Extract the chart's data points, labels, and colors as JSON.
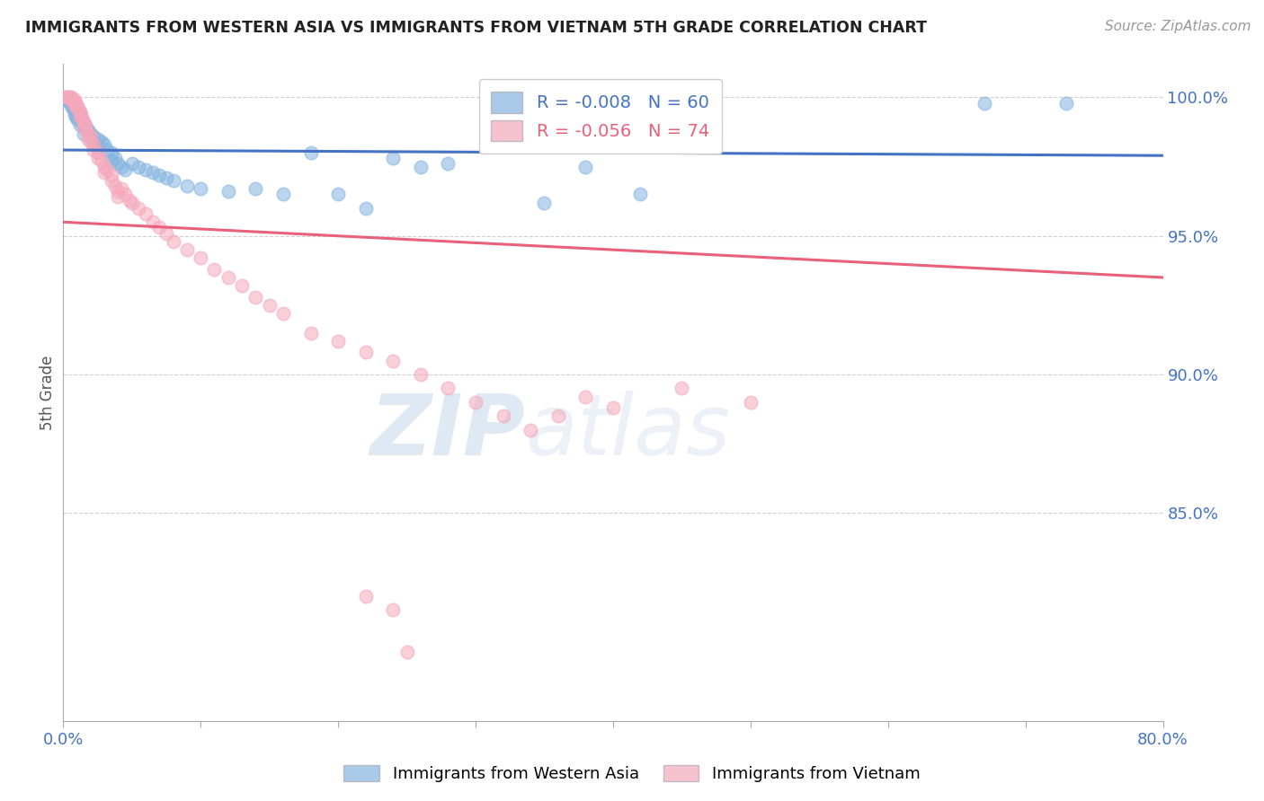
{
  "title": "IMMIGRANTS FROM WESTERN ASIA VS IMMIGRANTS FROM VIETNAM 5TH GRADE CORRELATION CHART",
  "source": "Source: ZipAtlas.com",
  "ylabel": "5th Grade",
  "ytick_labels": [
    "100.0%",
    "95.0%",
    "90.0%",
    "85.0%"
  ],
  "ytick_values": [
    1.0,
    0.95,
    0.9,
    0.85
  ],
  "xlim": [
    0.0,
    0.8
  ],
  "ylim": [
    0.775,
    1.012
  ],
  "legend_blue_r": "R = -0.008",
  "legend_blue_n": "N = 60",
  "legend_pink_r": "R = -0.056",
  "legend_pink_n": "N = 74",
  "blue_color": "#85b4e0",
  "pink_color": "#f5a8bc",
  "blue_line_color": "#4472c4",
  "pink_line_color": "#e8607a",
  "blue_line_y0": 0.981,
  "blue_line_y1": 0.979,
  "pink_line_y0": 0.955,
  "pink_line_y1": 0.935,
  "blue_scatter": [
    [
      0.002,
      0.999
    ],
    [
      0.003,
      0.999
    ],
    [
      0.004,
      0.999
    ],
    [
      0.005,
      0.999
    ],
    [
      0.006,
      0.999
    ],
    [
      0.006,
      0.997
    ],
    [
      0.007,
      0.998
    ],
    [
      0.007,
      0.996
    ],
    [
      0.008,
      0.997
    ],
    [
      0.008,
      0.994
    ],
    [
      0.009,
      0.996
    ],
    [
      0.009,
      0.993
    ],
    [
      0.01,
      0.995
    ],
    [
      0.01,
      0.992
    ],
    [
      0.011,
      0.994
    ],
    [
      0.012,
      0.993
    ],
    [
      0.012,
      0.99
    ],
    [
      0.013,
      0.992
    ],
    [
      0.014,
      0.991
    ],
    [
      0.015,
      0.99
    ],
    [
      0.015,
      0.987
    ],
    [
      0.017,
      0.989
    ],
    [
      0.018,
      0.988
    ],
    [
      0.02,
      0.987
    ],
    [
      0.022,
      0.986
    ],
    [
      0.022,
      0.983
    ],
    [
      0.025,
      0.985
    ],
    [
      0.025,
      0.982
    ],
    [
      0.028,
      0.984
    ],
    [
      0.03,
      0.983
    ],
    [
      0.032,
      0.981
    ],
    [
      0.035,
      0.98
    ],
    [
      0.035,
      0.977
    ],
    [
      0.038,
      0.978
    ],
    [
      0.04,
      0.976
    ],
    [
      0.042,
      0.975
    ],
    [
      0.045,
      0.974
    ],
    [
      0.05,
      0.976
    ],
    [
      0.055,
      0.975
    ],
    [
      0.06,
      0.974
    ],
    [
      0.065,
      0.973
    ],
    [
      0.07,
      0.972
    ],
    [
      0.075,
      0.971
    ],
    [
      0.08,
      0.97
    ],
    [
      0.09,
      0.968
    ],
    [
      0.1,
      0.967
    ],
    [
      0.12,
      0.966
    ],
    [
      0.14,
      0.967
    ],
    [
      0.16,
      0.965
    ],
    [
      0.18,
      0.98
    ],
    [
      0.2,
      0.965
    ],
    [
      0.22,
      0.96
    ],
    [
      0.24,
      0.978
    ],
    [
      0.26,
      0.975
    ],
    [
      0.28,
      0.976
    ],
    [
      0.35,
      0.962
    ],
    [
      0.38,
      0.975
    ],
    [
      0.42,
      0.965
    ],
    [
      0.67,
      0.998
    ],
    [
      0.73,
      0.998
    ]
  ],
  "pink_scatter": [
    [
      0.002,
      1.0
    ],
    [
      0.003,
      1.0
    ],
    [
      0.004,
      1.0
    ],
    [
      0.005,
      1.0
    ],
    [
      0.006,
      1.0
    ],
    [
      0.006,
      0.999
    ],
    [
      0.007,
      0.999
    ],
    [
      0.008,
      0.999
    ],
    [
      0.008,
      0.998
    ],
    [
      0.009,
      0.998
    ],
    [
      0.009,
      0.997
    ],
    [
      0.01,
      0.997
    ],
    [
      0.01,
      0.996
    ],
    [
      0.011,
      0.996
    ],
    [
      0.012,
      0.995
    ],
    [
      0.012,
      0.993
    ],
    [
      0.013,
      0.994
    ],
    [
      0.014,
      0.992
    ],
    [
      0.015,
      0.991
    ],
    [
      0.015,
      0.989
    ],
    [
      0.016,
      0.99
    ],
    [
      0.017,
      0.988
    ],
    [
      0.018,
      0.987
    ],
    [
      0.018,
      0.985
    ],
    [
      0.02,
      0.986
    ],
    [
      0.02,
      0.984
    ],
    [
      0.022,
      0.983
    ],
    [
      0.022,
      0.981
    ],
    [
      0.025,
      0.98
    ],
    [
      0.025,
      0.978
    ],
    [
      0.028,
      0.977
    ],
    [
      0.03,
      0.975
    ],
    [
      0.03,
      0.973
    ],
    [
      0.032,
      0.974
    ],
    [
      0.035,
      0.972
    ],
    [
      0.035,
      0.97
    ],
    [
      0.038,
      0.968
    ],
    [
      0.04,
      0.966
    ],
    [
      0.04,
      0.964
    ],
    [
      0.042,
      0.967
    ],
    [
      0.045,
      0.965
    ],
    [
      0.048,
      0.963
    ],
    [
      0.05,
      0.962
    ],
    [
      0.055,
      0.96
    ],
    [
      0.06,
      0.958
    ],
    [
      0.065,
      0.955
    ],
    [
      0.07,
      0.953
    ],
    [
      0.075,
      0.951
    ],
    [
      0.08,
      0.948
    ],
    [
      0.09,
      0.945
    ],
    [
      0.1,
      0.942
    ],
    [
      0.11,
      0.938
    ],
    [
      0.12,
      0.935
    ],
    [
      0.13,
      0.932
    ],
    [
      0.14,
      0.928
    ],
    [
      0.15,
      0.925
    ],
    [
      0.16,
      0.922
    ],
    [
      0.18,
      0.915
    ],
    [
      0.2,
      0.912
    ],
    [
      0.22,
      0.908
    ],
    [
      0.24,
      0.905
    ],
    [
      0.26,
      0.9
    ],
    [
      0.28,
      0.895
    ],
    [
      0.3,
      0.89
    ],
    [
      0.32,
      0.885
    ],
    [
      0.34,
      0.88
    ],
    [
      0.36,
      0.885
    ],
    [
      0.38,
      0.892
    ],
    [
      0.4,
      0.888
    ],
    [
      0.45,
      0.895
    ],
    [
      0.5,
      0.89
    ],
    [
      0.22,
      0.82
    ],
    [
      0.24,
      0.815
    ],
    [
      0.25,
      0.8
    ]
  ],
  "watermark_zip": "ZIP",
  "watermark_atlas": "atlas",
  "background_color": "#ffffff",
  "grid_color": "#d0d0d0"
}
